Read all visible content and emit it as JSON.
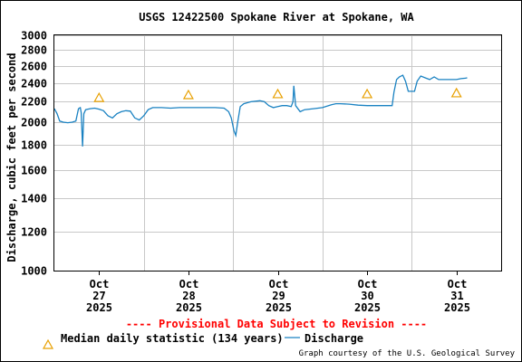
{
  "chart_data": {
    "type": "line",
    "title": "USGS 12422500 Spokane River at Spokane, WA",
    "ylabel": "Discharge, cubic feet per second",
    "xlabel": "",
    "y_scale": "log",
    "ylim": [
      1000,
      3000
    ],
    "yticks": [
      "3000",
      "2800",
      "2600",
      "2400",
      "2200",
      "2000",
      "1800",
      "1600",
      "1400",
      "1200",
      "1000"
    ],
    "ytick_values": [
      3000,
      2800,
      2600,
      2400,
      2200,
      2000,
      1800,
      1600,
      1400,
      1200,
      1000
    ],
    "x_range": [
      26.5,
      31.5
    ],
    "xticks": [
      {
        "x": 27,
        "month": "Oct",
        "day": "27",
        "year": "2025"
      },
      {
        "x": 28,
        "month": "Oct",
        "day": "28",
        "year": "2025"
      },
      {
        "x": 29,
        "month": "Oct",
        "day": "29",
        "year": "2025"
      },
      {
        "x": 30,
        "month": "Oct",
        "day": "30",
        "year": "2025"
      },
      {
        "x": 31,
        "month": "Oct",
        "day": "31",
        "year": "2025"
      }
    ],
    "grid": true,
    "legend_position": "bottom",
    "series": [
      {
        "name": "Discharge",
        "color": "#1a82c2",
        "points": [
          [
            26.5,
            2130
          ],
          [
            26.53,
            2080
          ],
          [
            26.56,
            2010
          ],
          [
            26.6,
            2000
          ],
          [
            26.65,
            1995
          ],
          [
            26.7,
            2000
          ],
          [
            26.74,
            2010
          ],
          [
            26.77,
            2130
          ],
          [
            26.79,
            2140
          ],
          [
            26.8,
            2090
          ],
          [
            26.815,
            1785
          ],
          [
            26.83,
            2080
          ],
          [
            26.85,
            2120
          ],
          [
            26.9,
            2130
          ],
          [
            26.95,
            2135
          ],
          [
            27.0,
            2125
          ],
          [
            27.05,
            2110
          ],
          [
            27.1,
            2060
          ],
          [
            27.15,
            2040
          ],
          [
            27.2,
            2080
          ],
          [
            27.25,
            2100
          ],
          [
            27.3,
            2110
          ],
          [
            27.35,
            2105
          ],
          [
            27.4,
            2040
          ],
          [
            27.45,
            2020
          ],
          [
            27.5,
            2060
          ],
          [
            27.55,
            2120
          ],
          [
            27.6,
            2140
          ],
          [
            27.7,
            2140
          ],
          [
            27.8,
            2135
          ],
          [
            27.9,
            2140
          ],
          [
            28.0,
            2140
          ],
          [
            28.1,
            2140
          ],
          [
            28.2,
            2140
          ],
          [
            28.3,
            2140
          ],
          [
            28.4,
            2135
          ],
          [
            28.45,
            2100
          ],
          [
            28.48,
            2040
          ],
          [
            28.51,
            1920
          ],
          [
            28.53,
            1880
          ],
          [
            28.55,
            1990
          ],
          [
            28.58,
            2150
          ],
          [
            28.62,
            2180
          ],
          [
            28.7,
            2200
          ],
          [
            28.8,
            2210
          ],
          [
            28.85,
            2200
          ],
          [
            28.9,
            2160
          ],
          [
            28.95,
            2140
          ],
          [
            29.0,
            2150
          ],
          [
            29.05,
            2160
          ],
          [
            29.1,
            2160
          ],
          [
            29.15,
            2150
          ],
          [
            29.17,
            2200
          ],
          [
            29.18,
            2370
          ],
          [
            29.2,
            2160
          ],
          [
            29.25,
            2100
          ],
          [
            29.3,
            2120
          ],
          [
            29.4,
            2130
          ],
          [
            29.5,
            2140
          ],
          [
            29.6,
            2170
          ],
          [
            29.65,
            2180
          ],
          [
            29.7,
            2180
          ],
          [
            29.8,
            2175
          ],
          [
            29.9,
            2165
          ],
          [
            30.0,
            2160
          ],
          [
            30.1,
            2160
          ],
          [
            30.2,
            2160
          ],
          [
            30.28,
            2160
          ],
          [
            30.3,
            2300
          ],
          [
            30.33,
            2440
          ],
          [
            30.36,
            2470
          ],
          [
            30.4,
            2490
          ],
          [
            30.43,
            2420
          ],
          [
            30.46,
            2310
          ],
          [
            30.5,
            2310
          ],
          [
            30.53,
            2310
          ],
          [
            30.56,
            2420
          ],
          [
            30.6,
            2480
          ],
          [
            30.65,
            2460
          ],
          [
            30.7,
            2440
          ],
          [
            30.75,
            2470
          ],
          [
            30.8,
            2440
          ],
          [
            30.9,
            2440
          ],
          [
            31.0,
            2440
          ],
          [
            31.05,
            2450
          ],
          [
            31.1,
            2455
          ],
          [
            31.12,
            2460
          ]
        ]
      }
    ],
    "median_markers": {
      "name": "Median daily statistic (134 years)",
      "color": "#e8a000",
      "points": [
        [
          27.0,
          2240
        ],
        [
          28.0,
          2270
        ],
        [
          29.0,
          2280
        ],
        [
          30.0,
          2280
        ],
        [
          31.0,
          2290
        ]
      ]
    },
    "provisional_note": "---- Provisional Data Subject to Revision ----",
    "provisional_color": "#ff0000",
    "credit": "Graph courtesy of the U.S. Geological Survey"
  }
}
